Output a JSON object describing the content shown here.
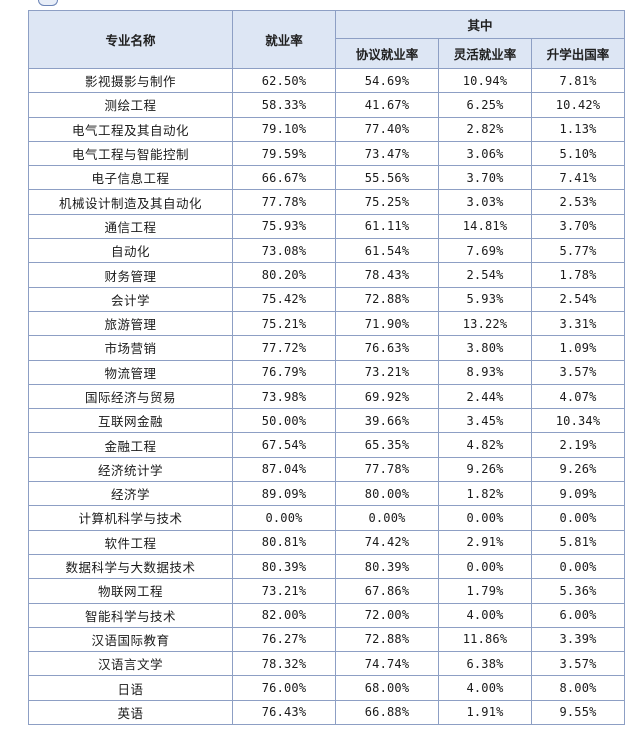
{
  "table": {
    "headers": {
      "major": "专业名称",
      "employment_rate": "就业率",
      "of_which": "其中",
      "contract_rate": "协议就业率",
      "flexible_rate": "灵活就业率",
      "further_study_rate": "升学出国率"
    },
    "rows": [
      {
        "major": "影视摄影与制作",
        "employment": "62.50%",
        "contract": "54.69%",
        "flexible": "10.94%",
        "study": "7.81%"
      },
      {
        "major": "测绘工程",
        "employment": "58.33%",
        "contract": "41.67%",
        "flexible": "6.25%",
        "study": "10.42%"
      },
      {
        "major": "电气工程及其自动化",
        "employment": "79.10%",
        "contract": "77.40%",
        "flexible": "2.82%",
        "study": "1.13%"
      },
      {
        "major": "电气工程与智能控制",
        "employment": "79.59%",
        "contract": "73.47%",
        "flexible": "3.06%",
        "study": "5.10%"
      },
      {
        "major": "电子信息工程",
        "employment": "66.67%",
        "contract": "55.56%",
        "flexible": "3.70%",
        "study": "7.41%"
      },
      {
        "major": "机械设计制造及其自动化",
        "employment": "77.78%",
        "contract": "75.25%",
        "flexible": "3.03%",
        "study": "2.53%"
      },
      {
        "major": "通信工程",
        "employment": "75.93%",
        "contract": "61.11%",
        "flexible": "14.81%",
        "study": "3.70%"
      },
      {
        "major": "自动化",
        "employment": "73.08%",
        "contract": "61.54%",
        "flexible": "7.69%",
        "study": "5.77%"
      },
      {
        "major": "财务管理",
        "employment": "80.20%",
        "contract": "78.43%",
        "flexible": "2.54%",
        "study": "1.78%"
      },
      {
        "major": "会计学",
        "employment": "75.42%",
        "contract": "72.88%",
        "flexible": "5.93%",
        "study": "2.54%"
      },
      {
        "major": "旅游管理",
        "employment": "75.21%",
        "contract": "71.90%",
        "flexible": "13.22%",
        "study": "3.31%"
      },
      {
        "major": "市场营销",
        "employment": "77.72%",
        "contract": "76.63%",
        "flexible": "3.80%",
        "study": "1.09%"
      },
      {
        "major": "物流管理",
        "employment": "76.79%",
        "contract": "73.21%",
        "flexible": "8.93%",
        "study": "3.57%"
      },
      {
        "major": "国际经济与贸易",
        "employment": "73.98%",
        "contract": "69.92%",
        "flexible": "2.44%",
        "study": "4.07%"
      },
      {
        "major": "互联网金融",
        "employment": "50.00%",
        "contract": "39.66%",
        "flexible": "3.45%",
        "study": "10.34%"
      },
      {
        "major": "金融工程",
        "employment": "67.54%",
        "contract": "65.35%",
        "flexible": "4.82%",
        "study": "2.19%"
      },
      {
        "major": "经济统计学",
        "employment": "87.04%",
        "contract": "77.78%",
        "flexible": "9.26%",
        "study": "9.26%"
      },
      {
        "major": "经济学",
        "employment": "89.09%",
        "contract": "80.00%",
        "flexible": "1.82%",
        "study": "9.09%"
      },
      {
        "major": "计算机科学与技术",
        "employment": "0.00%",
        "contract": "0.00%",
        "flexible": "0.00%",
        "study": "0.00%"
      },
      {
        "major": "软件工程",
        "employment": "80.81%",
        "contract": "74.42%",
        "flexible": "2.91%",
        "study": "5.81%"
      },
      {
        "major": "数据科学与大数据技术",
        "employment": "80.39%",
        "contract": "80.39%",
        "flexible": "0.00%",
        "study": "0.00%"
      },
      {
        "major": "物联网工程",
        "employment": "73.21%",
        "contract": "67.86%",
        "flexible": "1.79%",
        "study": "5.36%"
      },
      {
        "major": "智能科学与技术",
        "employment": "82.00%",
        "contract": "72.00%",
        "flexible": "4.00%",
        "study": "6.00%"
      },
      {
        "major": "汉语国际教育",
        "employment": "76.27%",
        "contract": "72.88%",
        "flexible": "11.86%",
        "study": "3.39%"
      },
      {
        "major": "汉语言文学",
        "employment": "78.32%",
        "contract": "74.74%",
        "flexible": "6.38%",
        "study": "3.57%"
      },
      {
        "major": "日语",
        "employment": "76.00%",
        "contract": "68.00%",
        "flexible": "4.00%",
        "study": "8.00%"
      },
      {
        "major": "英语",
        "employment": "76.43%",
        "contract": "66.88%",
        "flexible": "1.91%",
        "study": "9.55%"
      }
    ]
  }
}
